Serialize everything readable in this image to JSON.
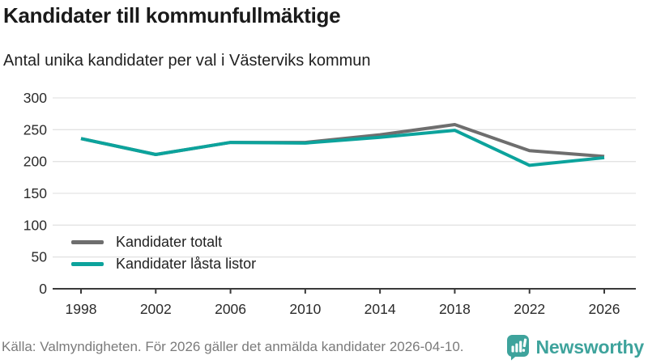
{
  "header": {
    "title": "Kandidater till kommunfullmäktige",
    "subtitle": "Antal unika kandidater per val i Västerviks kommun"
  },
  "chart_data": {
    "type": "line",
    "x": [
      1998,
      2002,
      2006,
      2010,
      2014,
      2018,
      2022,
      2026
    ],
    "series": [
      {
        "name": "Kandidater totalt",
        "color": "#6E6E6E",
        "values": [
          236,
          211,
          230,
          230,
          242,
          258,
          217,
          208
        ]
      },
      {
        "name": "Kandidater låsta listor",
        "color": "#0CA39C",
        "values": [
          236,
          211,
          230,
          229,
          238,
          249,
          194,
          206
        ]
      }
    ],
    "title": "Kandidater till kommunfullmäktige",
    "subtitle": "Antal unika kandidater per val i Västerviks kommun",
    "xlabel": "",
    "ylabel": "",
    "ylim": [
      0,
      300
    ],
    "ytick_step": 50,
    "yticks": [
      0,
      50,
      100,
      150,
      200,
      250,
      300
    ],
    "grid": true,
    "legend_position": "inside-bottom-left"
  },
  "footer": {
    "source": "Källa: Valmyndigheten. För 2026 gäller det anmälda kandidater 2026-04-10.",
    "brand": "Newsworthy"
  },
  "colors": {
    "line_gray": "#6E6E6E",
    "line_teal": "#0CA39C",
    "brand_teal": "#3EA39C",
    "grid": "#E3E3E3",
    "axis": "#3A3A3A",
    "tick_text": "#2B2B2B",
    "title_text": "#1A1A1A",
    "muted_text": "#7B7B7B"
  }
}
